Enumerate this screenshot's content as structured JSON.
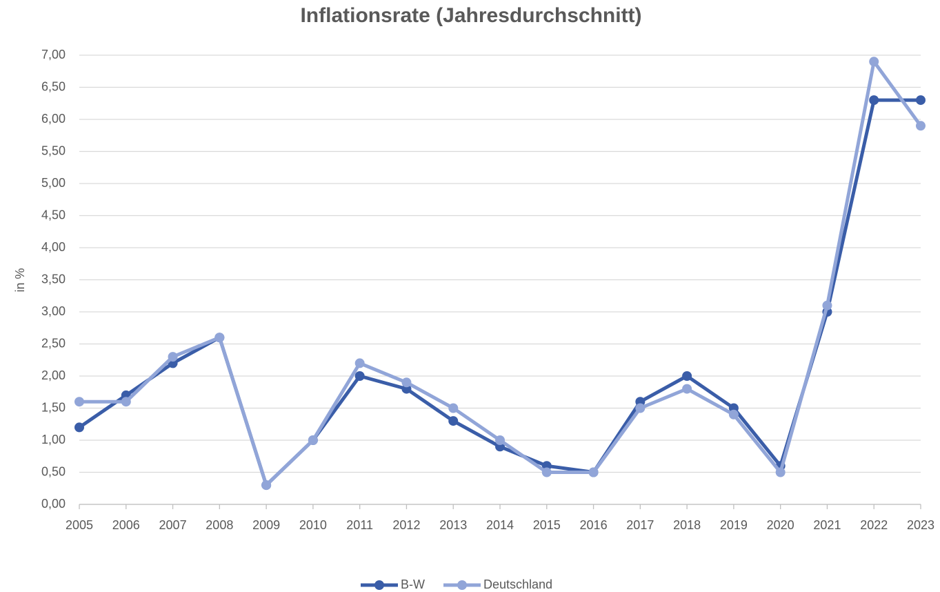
{
  "chart_data": {
    "type": "line",
    "title": "Inflationsrate (Jahresdurchschnitt)",
    "y_label": "in %",
    "categories": [
      "2005",
      "2006",
      "2007",
      "2008",
      "2009",
      "2010",
      "2011",
      "2012",
      "2013",
      "2014",
      "2015",
      "2016",
      "2017",
      "2018",
      "2019",
      "2020",
      "2021",
      "2022",
      "2023"
    ],
    "series": [
      {
        "name": "B-W",
        "color": "#3a5da8",
        "values": [
          1.2,
          1.7,
          2.2,
          2.6,
          0.3,
          1.0,
          2.0,
          1.8,
          1.3,
          0.9,
          0.6,
          0.5,
          1.6,
          2.0,
          1.5,
          0.6,
          3.0,
          6.3,
          6.3
        ]
      },
      {
        "name": "Deutschland",
        "color": "#91a5d8",
        "values": [
          1.6,
          1.6,
          2.3,
          2.6,
          0.3,
          1.0,
          2.2,
          1.9,
          1.5,
          1.0,
          0.5,
          0.5,
          1.5,
          1.8,
          1.4,
          0.5,
          3.1,
          6.9,
          5.9
        ]
      }
    ],
    "ylim": [
      0,
      7
    ],
    "yticks": [
      {
        "value": 0,
        "label": "0,00"
      },
      {
        "value": 0.5,
        "label": "0,50"
      },
      {
        "value": 1,
        "label": "1,00"
      },
      {
        "value": 1.5,
        "label": "1,50"
      },
      {
        "value": 2,
        "label": "2,00"
      },
      {
        "value": 2.5,
        "label": "2,50"
      },
      {
        "value": 3,
        "label": "3,00"
      },
      {
        "value": 3.5,
        "label": "3,50"
      },
      {
        "value": 4,
        "label": "4,00"
      },
      {
        "value": 4.5,
        "label": "4,50"
      },
      {
        "value": 5,
        "label": "5,00"
      },
      {
        "value": 5.5,
        "label": "5,50"
      },
      {
        "value": 6,
        "label": "6,00"
      },
      {
        "value": 6.5,
        "label": "6,50"
      },
      {
        "value": 7,
        "label": "7,00"
      }
    ],
    "grid": true,
    "legend": "bottom"
  }
}
